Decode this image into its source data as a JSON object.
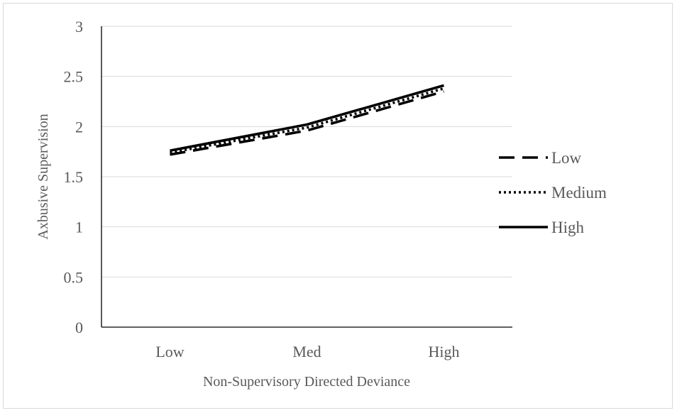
{
  "chart_data": {
    "type": "line",
    "categories": [
      "Low",
      "Med",
      "High"
    ],
    "series": [
      {
        "name": "Low",
        "values": [
          1.72,
          1.96,
          2.35
        ],
        "dash": "22 11",
        "color": "#000000"
      },
      {
        "name": "Medium",
        "values": [
          1.74,
          1.99,
          2.38
        ],
        "dash": "3 4",
        "color": "#000000"
      },
      {
        "name": "High",
        "values": [
          1.76,
          2.02,
          2.41
        ],
        "dash": "",
        "color": "#000000"
      }
    ],
    "title": "",
    "xlabel": "Non-Supervisory Directed Deviance",
    "ylabel": "Axbusive Supervision",
    "ylim": [
      0,
      3
    ],
    "yticks": [
      "0",
      "0.5",
      "1",
      "1.5",
      "2",
      "2.5",
      "3"
    ],
    "grid": true,
    "legend": "right"
  }
}
